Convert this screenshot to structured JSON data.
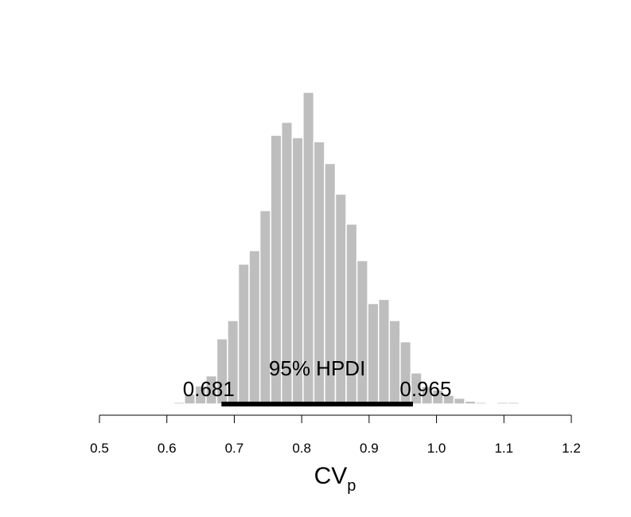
{
  "chart_data": {
    "type": "histogram",
    "bar_color": "#bebebe",
    "bar_edge_color": "#ffffff",
    "interval_color": "#000000",
    "xlabel": "CV",
    "xlabel_subscript": "p",
    "xlim": [
      0.5,
      1.2
    ],
    "x_ticks": [
      "0.5",
      "0.6",
      "0.7",
      "0.8",
      "0.9",
      "1.0",
      "1.1",
      "1.2"
    ],
    "bin_width": 0.016,
    "bins_start": [
      0.61,
      0.626,
      0.642,
      0.658,
      0.674,
      0.69,
      0.706,
      0.722,
      0.738,
      0.754,
      0.77,
      0.786,
      0.802,
      0.818,
      0.834,
      0.85,
      0.866,
      0.882,
      0.898,
      0.914,
      0.93,
      0.946,
      0.962,
      0.978,
      0.994,
      1.01,
      1.026,
      1.042,
      1.058,
      1.074,
      1.09,
      1.106
    ],
    "bar_heights": [
      0.3,
      1.7,
      3.1,
      4.8,
      11.1,
      14.2,
      23.8,
      26.1,
      32.9,
      45.7,
      47.9,
      45.3,
      53.0,
      44.6,
      40.9,
      35.7,
      30.6,
      24.4,
      17.1,
      17.8,
      14.2,
      10.6,
      5.3,
      3.0,
      2.4,
      1.5,
      1.0,
      0.5,
      0.3,
      0.2,
      0.3,
      0.3
    ],
    "hpdi": {
      "label": "95% HPDI",
      "lower": 0.681,
      "upper": 0.965,
      "lower_label": "0.681",
      "upper_label": "0.965"
    }
  }
}
